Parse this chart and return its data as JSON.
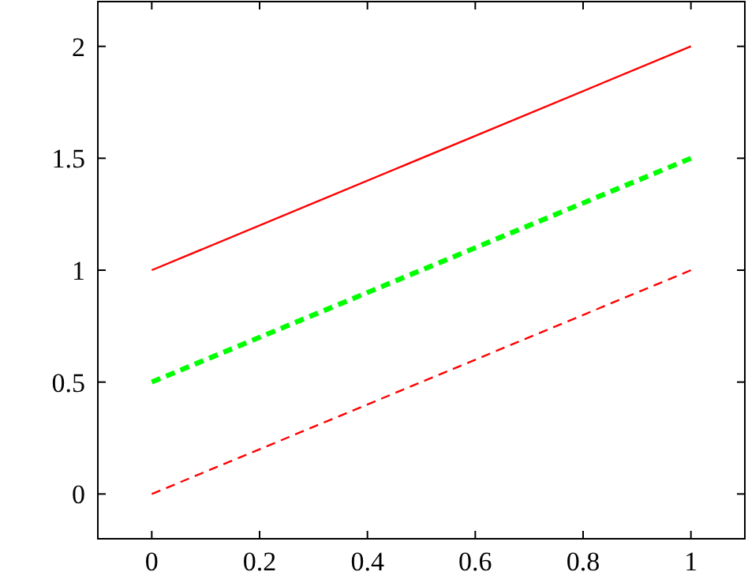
{
  "chart_data": {
    "type": "line",
    "x": [
      0,
      1
    ],
    "series": [
      {
        "color": "#ff0000",
        "values": [
          1,
          2
        ],
        "line_style": "solid"
      },
      {
        "color": "#00ff00",
        "values": [
          0.5,
          1.5
        ],
        "line_style": "dashed"
      },
      {
        "color": "#ff0000",
        "values": [
          0,
          1
        ],
        "line_style": "dashed"
      }
    ],
    "xlim": [
      -0.1,
      1.1
    ],
    "xticks": [
      0,
      0.2,
      0.4,
      0.6,
      0.8,
      1
    ],
    "ylim": [
      -0.2,
      2.2
    ],
    "yticks": [
      0,
      0.5,
      1,
      1.5,
      2
    ],
    "grid": false,
    "marker": "none"
  }
}
